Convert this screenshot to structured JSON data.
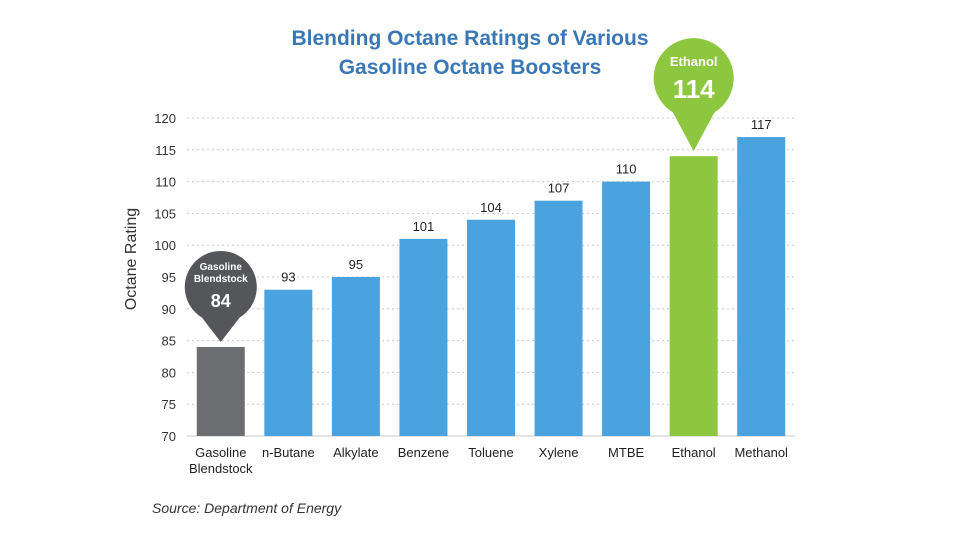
{
  "chart_data": {
    "type": "bar",
    "title_line1": "Blending Octane Ratings of Various",
    "title_line2": "Gasoline Octane Boosters",
    "ylabel": "Octane Rating",
    "xlabel": "",
    "ylim": [
      70,
      120
    ],
    "yticks": [
      70,
      75,
      80,
      85,
      90,
      95,
      100,
      105,
      110,
      115,
      120
    ],
    "grid": true,
    "categories": [
      [
        "Gasoline",
        "Blendstock"
      ],
      [
        "n-Butane"
      ],
      [
        "Alkylate"
      ],
      [
        "Benzene"
      ],
      [
        "Toluene"
      ],
      [
        "Xylene"
      ],
      [
        "MTBE"
      ],
      [
        "Ethanol"
      ],
      [
        "Methanol"
      ]
    ],
    "values": [
      84,
      93,
      95,
      101,
      104,
      107,
      110,
      114,
      117
    ],
    "value_labels_shown": [
      false,
      true,
      true,
      true,
      true,
      true,
      true,
      false,
      true
    ],
    "bar_colors": [
      "#6d6e71",
      "#4aa3de",
      "#4aa3de",
      "#4aa3de",
      "#4aa3de",
      "#4aa3de",
      "#4aa3de",
      "#8dc63f",
      "#4aa3de"
    ],
    "callouts": [
      {
        "bar_index": 0,
        "lines": [
          "Gasoline",
          "Blendstock"
        ],
        "value": "84",
        "color": "#555659"
      },
      {
        "bar_index": 7,
        "lines": [
          "Ethanol"
        ],
        "value": "114",
        "color": "#8dc63f"
      }
    ]
  },
  "source": "Source: Department of Energy"
}
